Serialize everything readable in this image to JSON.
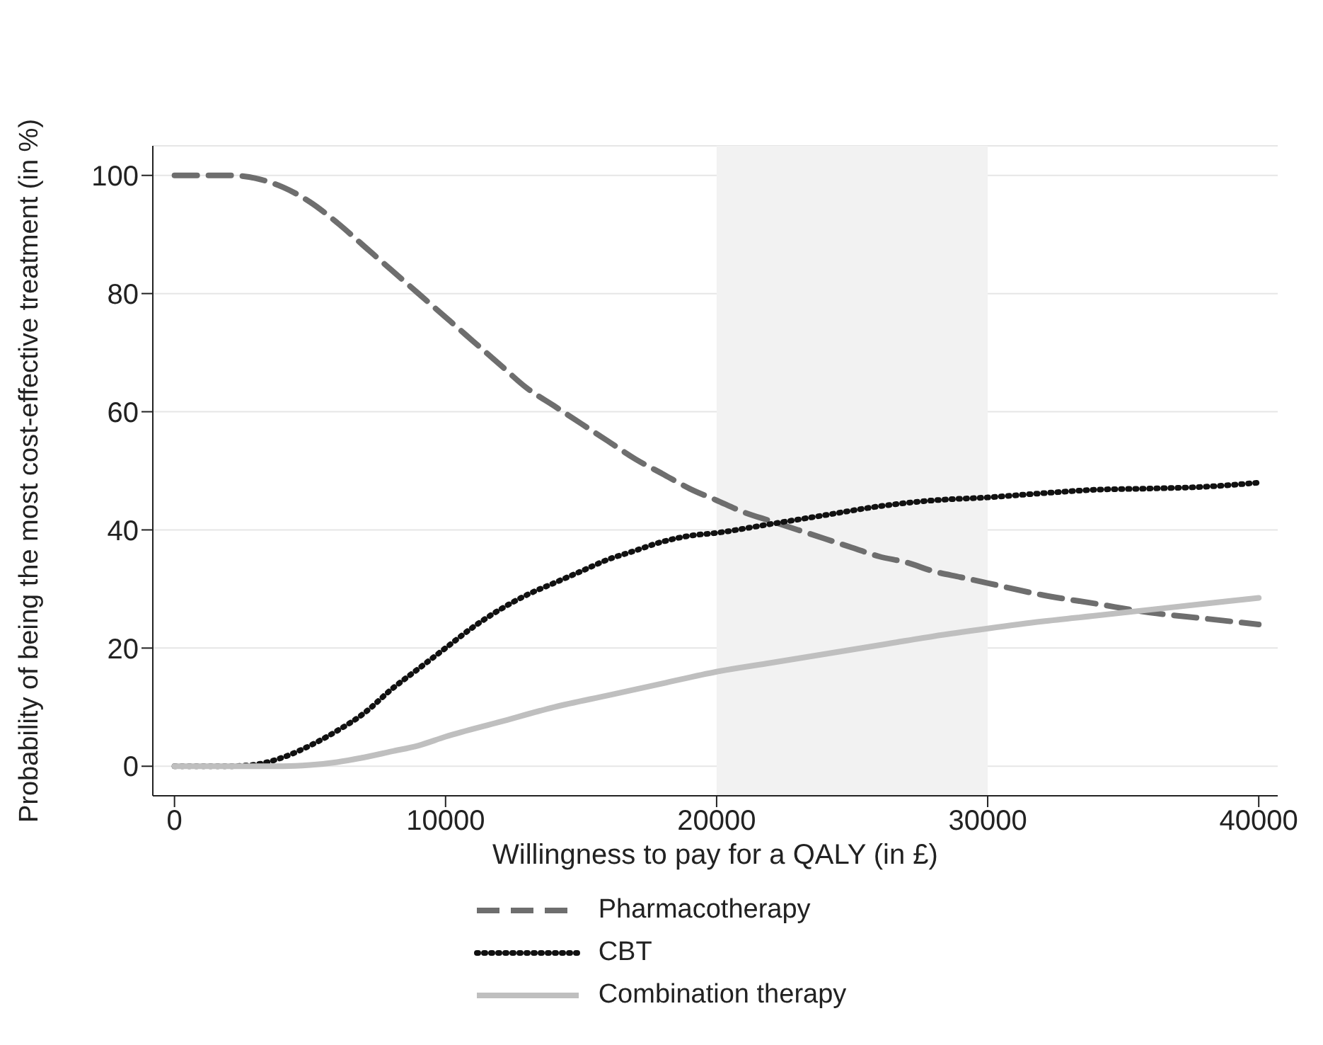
{
  "chart_data": {
    "type": "line",
    "xlabel": "Willingness to pay for a QALY (in £)",
    "ylabel": "Probability of being the most cost-effective treatment (in %)",
    "xlim": [
      -800,
      40700
    ],
    "ylim": [
      -5,
      105
    ],
    "xticks": [
      0,
      10000,
      20000,
      30000,
      40000
    ],
    "yticks": [
      0,
      20,
      40,
      60,
      80,
      100
    ],
    "grid": "y",
    "legend": "bottom",
    "marker": "none",
    "bands": [
      {
        "axis": "x",
        "from": 20000,
        "to": 30000,
        "color": "#f2f2f2"
      }
    ],
    "series": [
      {
        "name": "Pharmacotherapy",
        "color": "#6e6e6e",
        "line_style": "dashed",
        "x": [
          0,
          2000,
          3000,
          4000,
          5000,
          6000,
          7000,
          8000,
          9000,
          10000,
          11000,
          12000,
          13000,
          14000,
          15000,
          16000,
          17000,
          18000,
          19000,
          20000,
          21000,
          22000,
          23000,
          24000,
          25000,
          26000,
          27000,
          28000,
          29000,
          30000,
          32000,
          34000,
          36000,
          38000,
          40000
        ],
        "values": [
          100,
          100,
          99.5,
          98,
          95.5,
          92,
          88,
          84,
          80,
          76,
          72,
          68,
          64,
          61,
          58,
          55,
          52,
          49.5,
          47,
          45,
          43,
          41.5,
          40,
          38.5,
          37,
          35.5,
          34.5,
          33,
          32,
          31,
          29,
          27.5,
          26,
          25,
          24
        ]
      },
      {
        "name": "CBT",
        "color": "#111111",
        "line_style": "dotted",
        "x": [
          0,
          2000,
          3000,
          4000,
          5000,
          6000,
          7000,
          8000,
          9000,
          10000,
          11000,
          12000,
          13000,
          14000,
          15000,
          16000,
          17000,
          18000,
          19000,
          20000,
          22000,
          24000,
          26000,
          28000,
          30000,
          32000,
          34000,
          36000,
          38000,
          40000
        ],
        "values": [
          0,
          0,
          0.3,
          1.5,
          3.5,
          6,
          9,
          13,
          16.5,
          20,
          23.5,
          26.5,
          29,
          31,
          33,
          35,
          36.5,
          38,
          39,
          39.5,
          41,
          42.5,
          44,
          45,
          45.5,
          46.2,
          46.8,
          47,
          47.3,
          48
        ]
      },
      {
        "name": "Combination therapy",
        "color": "#bfbfbf",
        "line_style": "solid",
        "x": [
          0,
          4000,
          5000,
          6000,
          7000,
          8000,
          9000,
          10000,
          12000,
          14000,
          16000,
          18000,
          20000,
          22000,
          24000,
          26000,
          28000,
          30000,
          32000,
          34000,
          36000,
          38000,
          40000
        ],
        "values": [
          0,
          0,
          0.2,
          0.7,
          1.5,
          2.5,
          3.5,
          5,
          7.5,
          10,
          12,
          14,
          16,
          17.5,
          19,
          20.5,
          22,
          23.3,
          24.5,
          25.5,
          26.5,
          27.5,
          28.5
        ]
      }
    ]
  }
}
